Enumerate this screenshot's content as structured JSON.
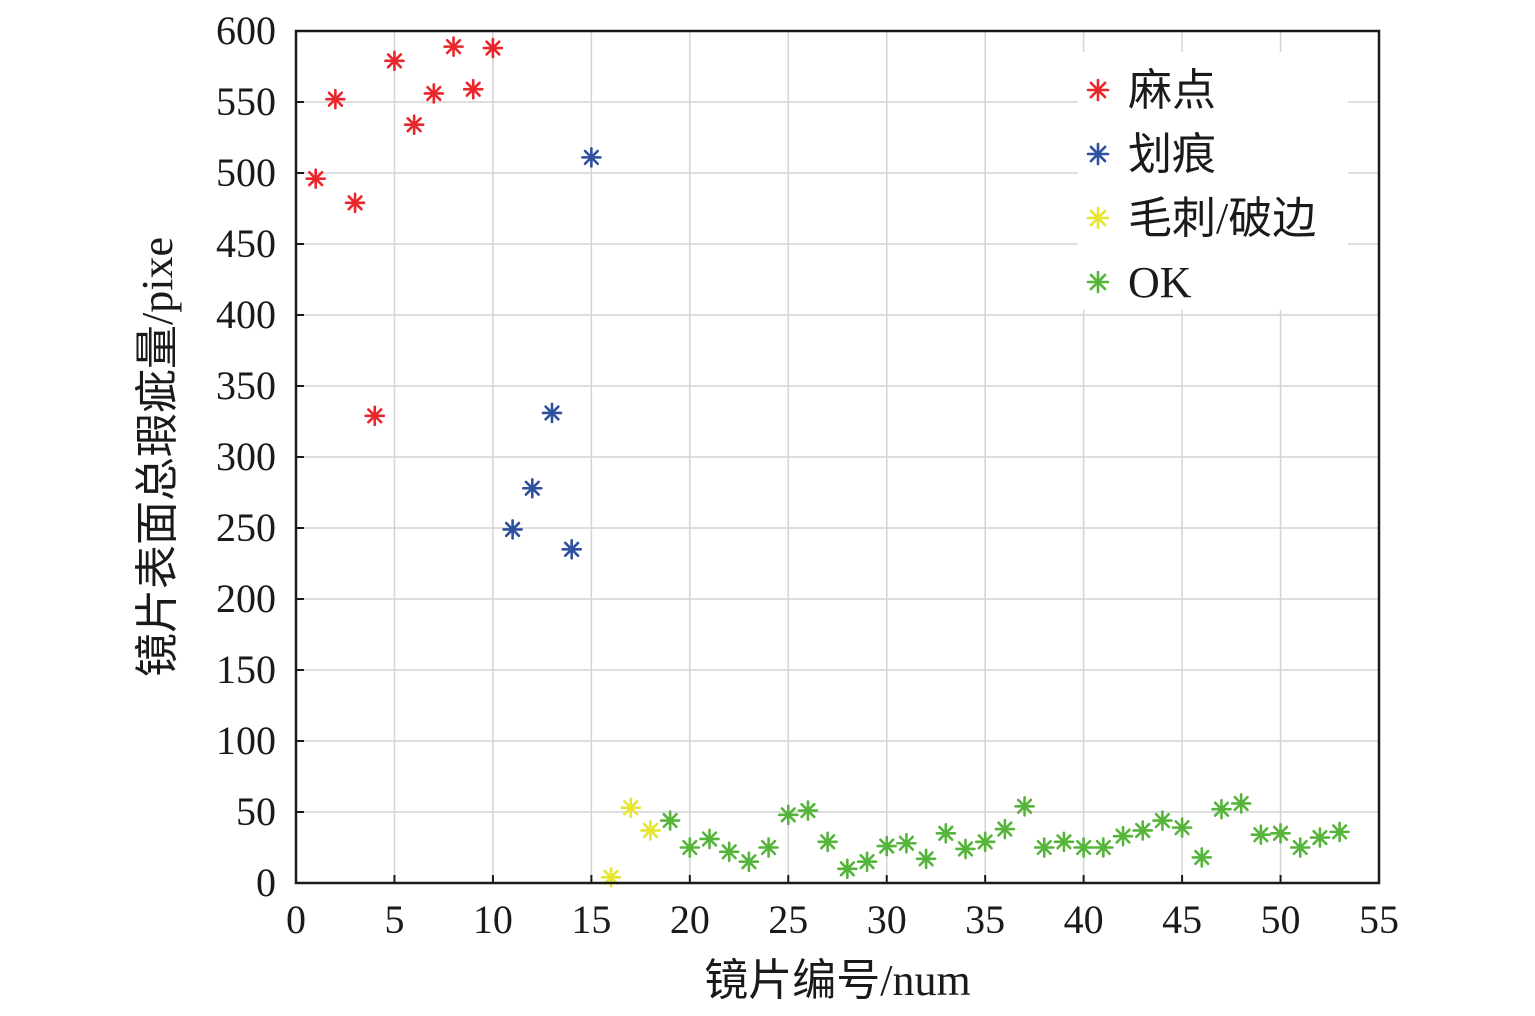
{
  "chart_data": {
    "type": "scatter",
    "title": "",
    "xlabel": "镜片编号/num",
    "ylabel": "镜片表面总瑕疵量/pixe",
    "xlim": [
      0,
      55
    ],
    "ylim": [
      0,
      600
    ],
    "xticks": [
      0,
      5,
      10,
      15,
      20,
      25,
      30,
      35,
      40,
      45,
      50,
      55
    ],
    "yticks": [
      0,
      50,
      100,
      150,
      200,
      250,
      300,
      350,
      400,
      450,
      500,
      550,
      600
    ],
    "grid": true,
    "legend_position": "top-right",
    "marker": "asterisk",
    "series": [
      {
        "name": "麻点",
        "color": "#e8262b",
        "x": [
          1,
          2,
          3,
          4,
          5,
          6,
          7,
          8,
          9,
          10
        ],
        "y": [
          496,
          552,
          479,
          329,
          579,
          534,
          556,
          589,
          559,
          588
        ]
      },
      {
        "name": "划痕",
        "color": "#2f4f9f",
        "x": [
          11,
          12,
          13,
          14,
          15
        ],
        "y": [
          249,
          278,
          331,
          235,
          511
        ]
      },
      {
        "name": "毛刺/破边",
        "color": "#e6e62e",
        "x": [
          16,
          17,
          18
        ],
        "y": [
          4,
          53,
          37
        ]
      },
      {
        "name": "OK",
        "color": "#55b53a",
        "x": [
          19,
          20,
          21,
          22,
          23,
          24,
          25,
          26,
          27,
          28,
          29,
          30,
          31,
          32,
          33,
          34,
          35,
          36,
          37,
          38,
          39,
          40,
          41,
          42,
          43,
          44,
          45,
          46,
          47,
          48,
          49,
          50,
          51,
          52,
          53
        ],
        "y": [
          44,
          25,
          31,
          22,
          15,
          25,
          48,
          51,
          29,
          10,
          15,
          26,
          28,
          17,
          35,
          24,
          29,
          38,
          54,
          25,
          29,
          25,
          25,
          33,
          37,
          44,
          39,
          18,
          52,
          56,
          34,
          35,
          25,
          32,
          36
        ]
      }
    ]
  }
}
